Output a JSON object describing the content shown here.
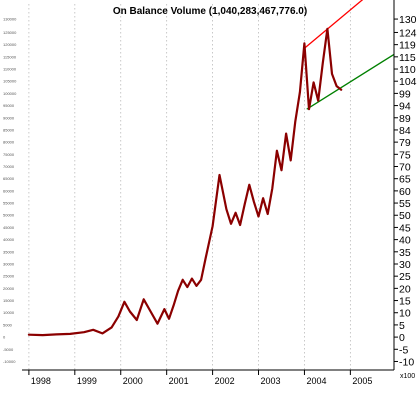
{
  "chart_data": {
    "type": "line",
    "title": "On Balance Volume (1,040,283,467,776.0)",
    "unit_label": "x100",
    "x_ticks": [
      "1998",
      "1999",
      "2000",
      "2001",
      "2002",
      "2003",
      "2004",
      "2005"
    ],
    "xlim": [
      1997.85,
      2005.95
    ],
    "ylim": [
      -14,
      137
    ],
    "right_ticks": [
      "130",
      "124",
      "119",
      "115",
      "110",
      "104",
      "99",
      "94",
      "89",
      "84",
      "79",
      "75",
      "70",
      "65",
      "60",
      "55",
      "50",
      "45",
      "40",
      "35",
      "30",
      "25",
      "20",
      "15",
      "10",
      "5",
      "0",
      "-5",
      "-10"
    ],
    "right_tick_values": [
      130,
      124.5,
      119.5,
      114.5,
      109.5,
      104.5,
      99.5,
      94.5,
      89.5,
      84.5,
      79.5,
      74.5,
      69.5,
      64.5,
      59.5,
      54.5,
      49.5,
      44.5,
      39.5,
      34.5,
      29.5,
      24.5,
      19.5,
      14.5,
      9.5,
      4.5,
      -0.5,
      -5.5,
      -10.5
    ],
    "left_ticks": [
      "130000",
      "125000",
      "120000",
      "115000",
      "110000",
      "105000",
      "100000",
      "95000",
      "90000",
      "85000",
      "80000",
      "75000",
      "70000",
      "65000",
      "60000",
      "55000",
      "50000",
      "45000",
      "40000",
      "35000",
      "30000",
      "25000",
      "20000",
      "15000",
      "10000",
      "5000",
      "0",
      "-5000",
      "-10000"
    ],
    "series": [
      {
        "color": "#8b0000",
        "x": [
          1998.0,
          1998.3,
          1998.6,
          1998.9,
          1999.2,
          1999.4,
          1999.6,
          1999.8,
          1999.95,
          2000.08,
          2000.2,
          2000.35,
          2000.5,
          2000.65,
          2000.8,
          2000.95,
          2001.05,
          2001.15,
          2001.25,
          2001.35,
          2001.45,
          2001.55,
          2001.65,
          2001.75,
          2001.85,
          2002.0,
          2002.15,
          2002.3,
          2002.4,
          2002.5,
          2002.6,
          2002.7,
          2002.8,
          2002.9,
          2003.0,
          2003.1,
          2003.2,
          2003.3,
          2003.4,
          2003.5,
          2003.6,
          2003.7,
          2003.8,
          2003.9,
          2004.0,
          2004.1,
          2004.2,
          2004.3,
          2004.4,
          2004.5,
          2004.6,
          2004.7,
          2004.8
        ],
        "y": [
          0.5,
          0.3,
          0.6,
          0.8,
          1.5,
          2.5,
          1.0,
          3.5,
          8.0,
          14.0,
          10.0,
          6.5,
          15.0,
          10.0,
          5.0,
          11.0,
          7.0,
          12.5,
          18.5,
          23.0,
          20.0,
          23.5,
          20.5,
          23.0,
          32.0,
          45.0,
          66.0,
          52.0,
          46.0,
          50.5,
          45.5,
          54.0,
          62.0,
          55.0,
          49.0,
          56.5,
          50.0,
          60.5,
          76.0,
          68.0,
          83.0,
          72.0,
          88.0,
          100.0,
          120.0,
          93.0,
          104.0,
          96.5,
          112.0,
          126.0,
          107.5,
          102.5,
          101.0
        ]
      }
    ],
    "annotations": [
      {
        "kind": "trendline",
        "color": "#ff0000",
        "x": [
          2004.0,
          2005.3
        ],
        "y": [
          118.0,
          138.5
        ]
      },
      {
        "kind": "trendline",
        "color": "#008000",
        "x": [
          2004.05,
          2005.95
        ],
        "y": [
          93.0,
          115.5
        ]
      }
    ]
  }
}
